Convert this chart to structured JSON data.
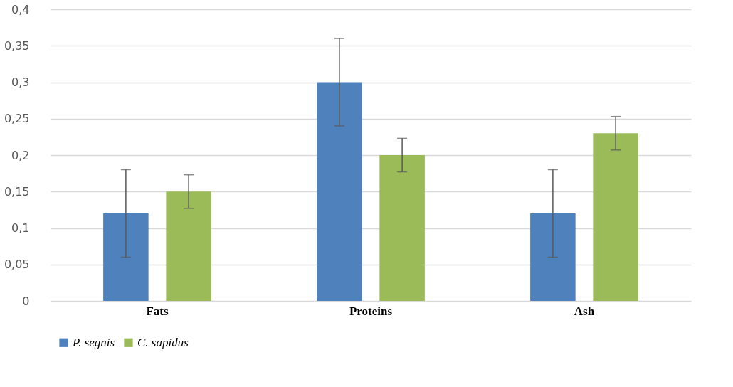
{
  "chart_data": {
    "type": "bar",
    "categories": [
      "Fats",
      "Proteins",
      "Ash"
    ],
    "series": [
      {
        "name": "P. segnis",
        "color": "#4f81bd",
        "values": [
          0.12,
          0.3,
          0.12
        ],
        "errors": [
          0.06,
          0.06,
          0.06
        ]
      },
      {
        "name": "C. sapidus",
        "color": "#9bbb59",
        "values": [
          0.15,
          0.2,
          0.23
        ],
        "errors": [
          0.023,
          0.023,
          0.023
        ]
      }
    ],
    "ylim": [
      0,
      0.4
    ],
    "yticks": [
      {
        "value": 0,
        "label": "0"
      },
      {
        "value": 0.05,
        "label": "0,05"
      },
      {
        "value": 0.1,
        "label": "0,1"
      },
      {
        "value": 0.15,
        "label": "0,15"
      },
      {
        "value": 0.2,
        "label": "0,2"
      },
      {
        "value": 0.25,
        "label": "0,25"
      },
      {
        "value": 0.3,
        "label": "0,3"
      },
      {
        "value": 0.35,
        "label": "0,35"
      },
      {
        "value": 0.4,
        "label": "0,4"
      }
    ],
    "grid": "y",
    "legend": "bottom"
  }
}
